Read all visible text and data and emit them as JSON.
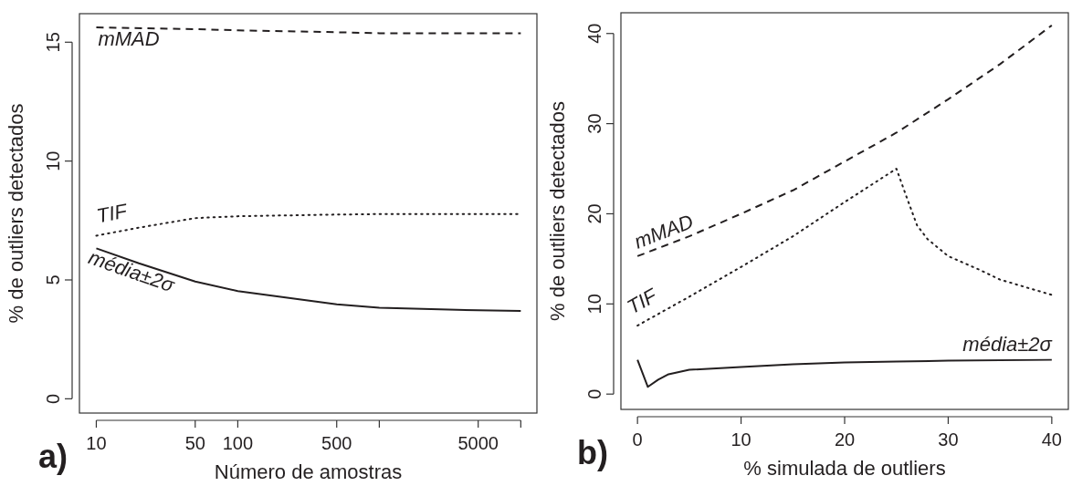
{
  "chart_data": [
    {
      "type": "line",
      "xlabel": "Número de amostras",
      "ylabel": "% de outliers detectados",
      "log": "x",
      "xlim": [
        7.6,
        13000
      ],
      "ylim": [
        -0.6,
        16.2
      ],
      "xticks": [
        10,
        50,
        100,
        500,
        {
          "value": 1000,
          "label": null
        },
        5000,
        {
          "value": 10000,
          "label": null
        }
      ],
      "yticks": [
        0,
        5,
        10,
        15
      ],
      "grid": false,
      "annotations": [
        "a)"
      ],
      "series": [
        {
          "name": "mMAD",
          "color": "#231f20",
          "line_style": "dashed",
          "x": [
            10,
            50,
            100,
            500,
            1000,
            5000,
            10000
          ],
          "values": [
            15.62,
            15.55,
            15.5,
            15.42,
            15.38,
            15.38,
            15.38
          ]
        },
        {
          "name": "TIF",
          "color": "#231f20",
          "line_style": "dotted",
          "x": [
            10,
            20,
            50,
            100,
            500,
            1000,
            5000,
            10000
          ],
          "values": [
            6.86,
            7.2,
            7.6,
            7.68,
            7.75,
            7.77,
            7.77,
            7.77
          ]
        },
        {
          "name": "média±2σ",
          "color": "#231f20",
          "line_style": "solid",
          "x": [
            10,
            20,
            50,
            100,
            500,
            1000,
            5000,
            10000
          ],
          "values": [
            6.33,
            5.7,
            4.93,
            4.53,
            3.97,
            3.83,
            3.72,
            3.7
          ]
        }
      ]
    },
    {
      "type": "line",
      "xlabel": "% simulada de outliers",
      "ylabel": "% de outliers detectados",
      "xlim": [
        -1.6,
        41.6
      ],
      "ylim": [
        -1.7,
        42.3
      ],
      "xticks": [
        0,
        10,
        20,
        30,
        40
      ],
      "yticks": [
        0,
        10,
        20,
        30,
        40
      ],
      "grid": false,
      "annotations": [
        "b)"
      ],
      "series": [
        {
          "name": "mMAD",
          "color": "#231f20",
          "line_style": "dashed",
          "x": [
            0,
            5,
            10,
            15,
            20,
            25,
            30,
            35,
            40
          ],
          "values": [
            15.3,
            17.5,
            20.0,
            22.6,
            25.8,
            29.0,
            32.7,
            36.6,
            40.9
          ]
        },
        {
          "name": "TIF",
          "color": "#231f20",
          "line_style": "dotted",
          "x": [
            0,
            5,
            10,
            15,
            20,
            25,
            26,
            27,
            28,
            30,
            33,
            35,
            40
          ],
          "values": [
            7.6,
            10.8,
            14.1,
            17.5,
            21.3,
            25.0,
            21.8,
            18.7,
            17.2,
            15.3,
            13.8,
            12.7,
            11.0
          ]
        },
        {
          "name": "média±2σ",
          "color": "#231f20",
          "line_style": "solid",
          "x": [
            0,
            1,
            2,
            3,
            5,
            10,
            15,
            20,
            25,
            30,
            40
          ],
          "values": [
            3.8,
            0.8,
            1.6,
            2.2,
            2.7,
            3.0,
            3.3,
            3.5,
            3.6,
            3.7,
            3.8
          ]
        }
      ]
    }
  ]
}
